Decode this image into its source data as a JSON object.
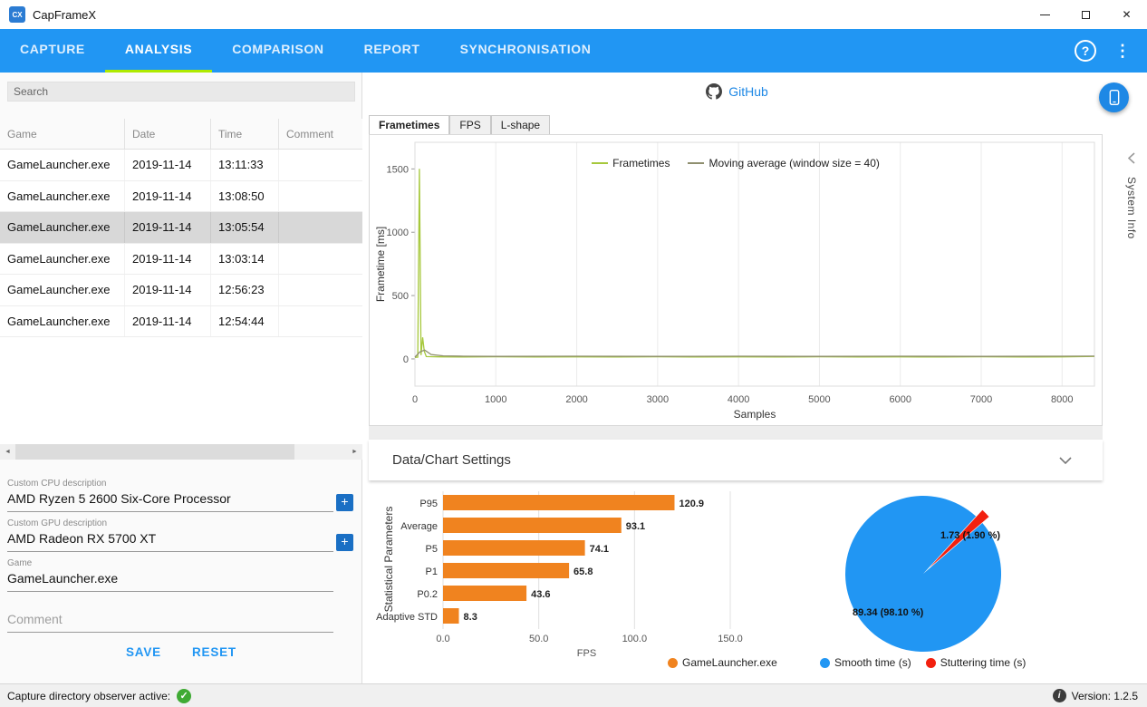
{
  "window": {
    "title": "CapFrameX",
    "logo": "CX"
  },
  "icons": {
    "help": "?",
    "menu": "⋮",
    "check": "✓",
    "info": "i",
    "plus": "+",
    "close": "✕",
    "scroll_left": "◄",
    "scroll_right": "►"
  },
  "nav": {
    "active_index": 1,
    "tabs": [
      {
        "label": "CAPTURE"
      },
      {
        "label": "ANALYSIS"
      },
      {
        "label": "COMPARISON"
      },
      {
        "label": "REPORT"
      },
      {
        "label": "SYNCHRONISATION"
      }
    ]
  },
  "records_panel": {
    "search_placeholder": "Search",
    "columns": [
      "Game",
      "Date",
      "Time",
      "Comment"
    ],
    "selected_row_index": 2,
    "rows": [
      {
        "game": "GameLauncher.exe",
        "date": "2019-11-14",
        "time": "13:11:33",
        "comment": ""
      },
      {
        "game": "GameLauncher.exe",
        "date": "2019-11-14",
        "time": "13:08:50",
        "comment": ""
      },
      {
        "game": "GameLauncher.exe",
        "date": "2019-11-14",
        "time": "13:05:54",
        "comment": ""
      },
      {
        "game": "GameLauncher.exe",
        "date": "2019-11-14",
        "time": "13:03:14",
        "comment": ""
      },
      {
        "game": "GameLauncher.exe",
        "date": "2019-11-14",
        "time": "12:56:23",
        "comment": ""
      },
      {
        "game": "GameLauncher.exe",
        "date": "2019-11-14",
        "time": "12:54:44",
        "comment": ""
      }
    ]
  },
  "form": {
    "cpu_label": "Custom CPU description",
    "cpu_value": "AMD Ryzen 5 2600 Six-Core Processor",
    "gpu_label": "Custom GPU description",
    "gpu_value": "AMD Radeon RX 5700 XT",
    "game_label": "Game",
    "game_value": "GameLauncher.exe",
    "comment_placeholder": "Comment",
    "save_label": "SAVE",
    "reset_label": "RESET"
  },
  "main": {
    "github_label": "GitHub",
    "tabs": [
      "Frametimes",
      "FPS",
      "L-shape"
    ],
    "active_tab_index": 0,
    "system_info_label": "System Info",
    "settings_label": "Data/Chart Settings"
  },
  "statusbar": {
    "observer_text": "Capture directory observer active:",
    "version_text": "Version: 1.2.5"
  },
  "chart_data": [
    {
      "type": "line",
      "xlabel": "Samples",
      "ylabel": "Frametime [ms]",
      "xlim": [
        0,
        8400
      ],
      "ylim": [
        -215,
        1710
      ],
      "xticks": [
        0,
        1000,
        2000,
        3000,
        4000,
        5000,
        6000,
        7000,
        8000
      ],
      "yticks": [
        0,
        500,
        1000,
        1500
      ],
      "grid": "vertical",
      "legend_position": "top-center",
      "series": [
        {
          "name": "Frametimes",
          "color": "#a6c83c",
          "points": [
            [
              0,
              12
            ],
            [
              35,
              14
            ],
            [
              55,
              1500
            ],
            [
              75,
              30
            ],
            [
              95,
              170
            ],
            [
              115,
              60
            ],
            [
              140,
              18
            ],
            [
              300,
              16
            ],
            [
              600,
              15
            ],
            [
              1000,
              17
            ],
            [
              1500,
              15
            ],
            [
              2000,
              16
            ],
            [
              2500,
              15
            ],
            [
              3000,
              17
            ],
            [
              3500,
              15
            ],
            [
              4000,
              16
            ],
            [
              4500,
              15
            ],
            [
              5000,
              17
            ],
            [
              5500,
              15
            ],
            [
              6000,
              16
            ],
            [
              6500,
              15
            ],
            [
              7000,
              17
            ],
            [
              7500,
              15
            ],
            [
              8000,
              16
            ],
            [
              8400,
              20
            ]
          ]
        },
        {
          "name": "Moving average (window size = 40)",
          "color": "#8f8f6f",
          "points": [
            [
              0,
              14
            ],
            [
              60,
              55
            ],
            [
              120,
              70
            ],
            [
              200,
              35
            ],
            [
              350,
              24
            ],
            [
              600,
              21
            ],
            [
              1000,
              20
            ],
            [
              2000,
              21
            ],
            [
              3000,
              20
            ],
            [
              4000,
              21
            ],
            [
              5000,
              20
            ],
            [
              6000,
              21
            ],
            [
              7000,
              20
            ],
            [
              8000,
              21
            ],
            [
              8400,
              22
            ]
          ]
        }
      ]
    },
    {
      "type": "bar",
      "categories": [
        "P95",
        "Average",
        "P5",
        "P1",
        "P0.2",
        "Adaptive STD"
      ],
      "values": [
        120.9,
        93.1,
        74.1,
        65.8,
        43.6,
        8.3
      ],
      "value_labels": [
        "120.9",
        "93.1",
        "74.1",
        "65.8",
        "43.6",
        "8.3"
      ],
      "xlabel": "FPS",
      "ylabel": "Statistical Parameters",
      "xlim": [
        0,
        150
      ],
      "xticks": [
        "0.0",
        "50.0",
        "100.0",
        "150.0"
      ],
      "legend": "GameLauncher.exe",
      "bar_color": "#F0831F"
    },
    {
      "type": "pie",
      "slices": [
        {
          "name": "Smooth time (s)",
          "value": 89.34,
          "label": "89.34 (98.10 %)",
          "color": "#2196F3"
        },
        {
          "name": "Stuttering time (s)",
          "value": 1.73,
          "label": "1.73 (1.90 %)",
          "color": "#f2200f"
        }
      ],
      "exploded_slice": 1,
      "legend_position": "bottom"
    }
  ]
}
